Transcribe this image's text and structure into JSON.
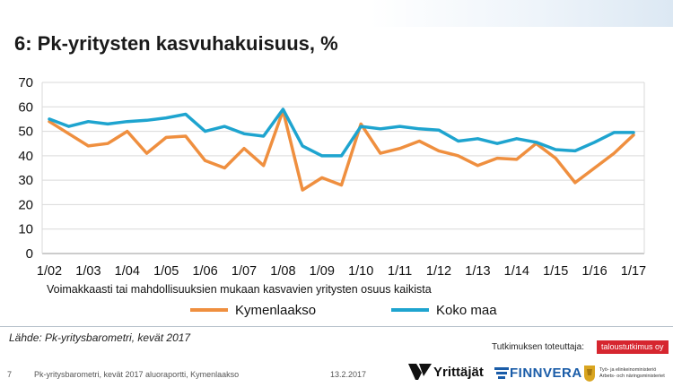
{
  "slide": {
    "title": "6: Pk-yritysten kasvuhakuisuus, %",
    "source": "Lähde: Pk-yritysbarometri, kevät 2017",
    "implementer_label": "Tutkimuksen toteuttaja:",
    "implementer_name": "taloustutkimus oy",
    "footer_page": "7",
    "footer_report": "Pk-yritysbarometri, kevät 2017 aluoraportti, Kymenlaakso",
    "footer_date": "13.2.2017",
    "logos": {
      "yrittajat": "Yrittäjät",
      "finnvera": "FINNVERA",
      "tem_line1": "Työ- ja elinkeinoministeriö",
      "tem_line2": "Arbets- och näringsministeriet"
    }
  },
  "chart_data": {
    "type": "line",
    "title": "6: Pk-yritysten kasvuhakuisuus, %",
    "xlabel": "Voimakkaasti tai mahdollisuuksien mukaan kasvavien yritysten osuus kaikista",
    "ylabel": "",
    "ylim": [
      0,
      70
    ],
    "yticks": [
      0,
      10,
      20,
      30,
      40,
      50,
      60,
      70
    ],
    "grid": true,
    "legend_position": "bottom",
    "xtick_labels": [
      "1/02",
      "1/03",
      "1/04",
      "1/05",
      "1/06",
      "1/07",
      "1/08",
      "1/09",
      "1/10",
      "1/11",
      "1/12",
      "1/13",
      "1/14",
      "1/15",
      "1/16",
      "1/17"
    ],
    "x": [
      0,
      0.5,
      1,
      1.5,
      2,
      2.5,
      3,
      3.5,
      4,
      4.5,
      5,
      5.5,
      6,
      6.5,
      7,
      7.5,
      8,
      8.5,
      9,
      9.5,
      10,
      10.5,
      11,
      11.5,
      12,
      12.5,
      13,
      13.5,
      14,
      14.5,
      15
    ],
    "series": [
      {
        "name": "Kymenlaakso",
        "color": "#ef8f3f",
        "values": [
          54,
          49,
          44,
          45,
          50,
          41,
          47.5,
          48,
          38,
          35,
          43,
          36,
          58.5,
          26,
          31,
          28,
          53,
          41,
          43,
          46,
          42,
          40,
          36,
          39,
          38.5,
          45,
          39,
          29,
          35,
          41,
          48.5
        ]
      },
      {
        "name": "Koko maa",
        "color": "#1ea4cf",
        "values": [
          55,
          52,
          54,
          53,
          54,
          54.5,
          55.5,
          57,
          50,
          52,
          49,
          48,
          59,
          44,
          40,
          40,
          52,
          51,
          52,
          51,
          50.5,
          46,
          47,
          45,
          47,
          45.5,
          42.5,
          42,
          45.5,
          49.5,
          49.5
        ]
      }
    ]
  }
}
